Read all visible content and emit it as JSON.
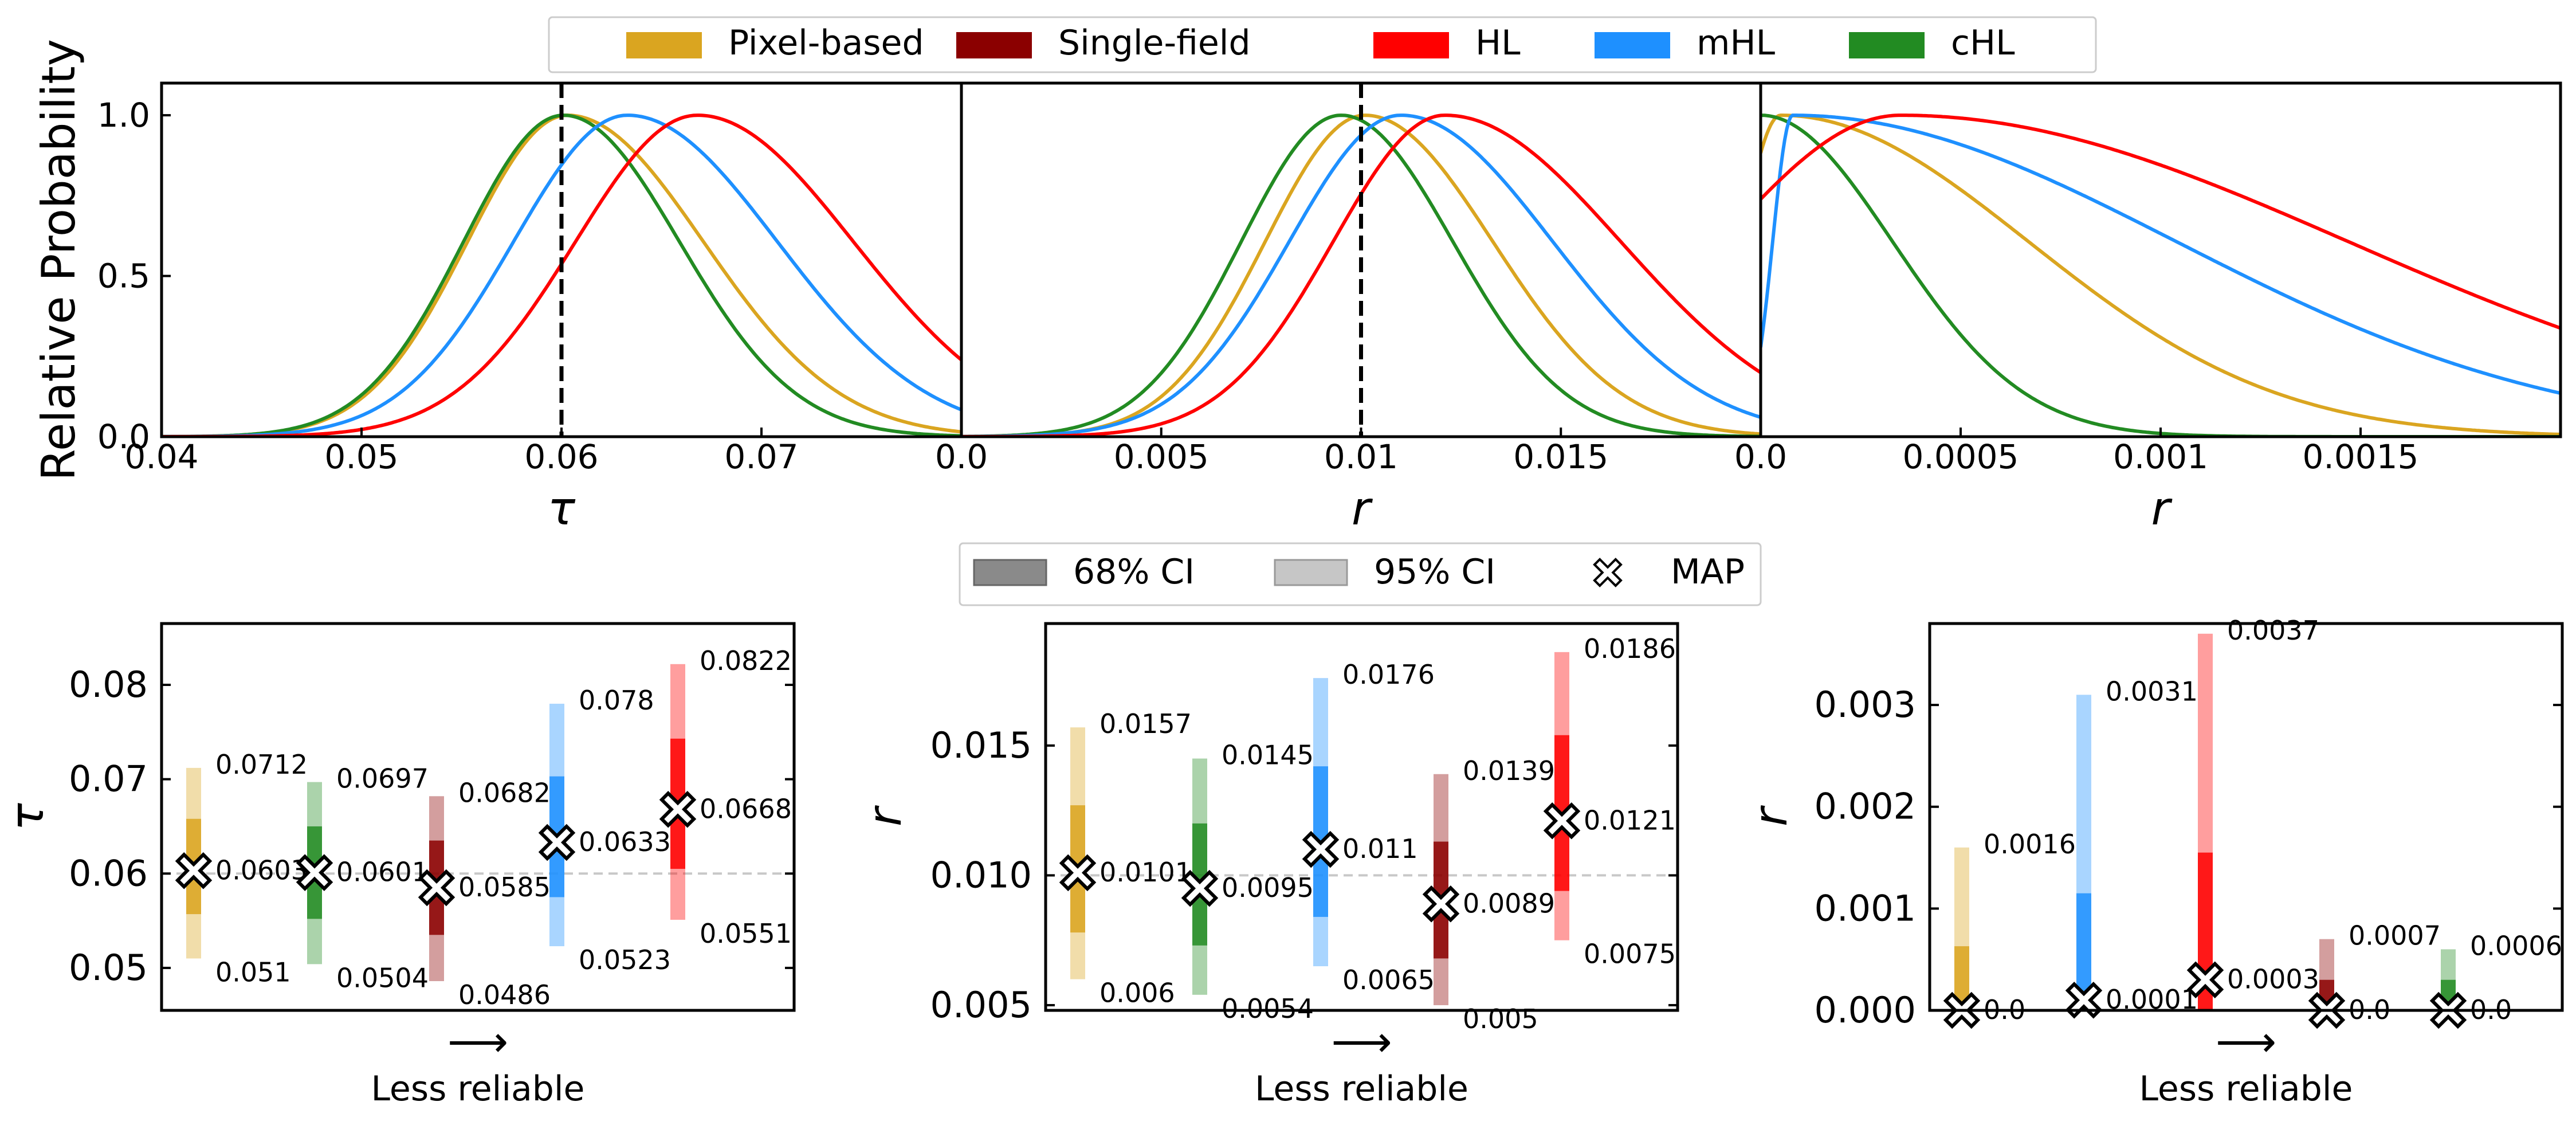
{
  "colors": {
    "pixel": "#DAA520",
    "single": "#8B0000",
    "hl": "#FF0000",
    "mhl": "#1E90FF",
    "chl": "#228B22"
  },
  "top_legend": {
    "items": [
      {
        "key": "pixel",
        "label": "Pixel-based"
      },
      {
        "key": "single",
        "label": "Single-field"
      },
      {
        "key": "hl",
        "label": "HL"
      },
      {
        "key": "mhl",
        "label": "mHL"
      },
      {
        "key": "chl",
        "label": "cHL"
      }
    ]
  },
  "ci_legend": {
    "items": [
      {
        "key": "ci68",
        "label": "68% CI"
      },
      {
        "key": "ci95",
        "label": "95% CI"
      },
      {
        "key": "map",
        "label": "MAP"
      }
    ]
  },
  "chart_data": [
    {
      "type": "line",
      "panel": "top-1",
      "ylabel": "Relative Probability",
      "xlabel": "τ",
      "xlim": [
        0.04,
        0.08
      ],
      "ylim": [
        0,
        1.1
      ],
      "xticks": [
        0.04,
        0.05,
        0.06,
        0.07
      ],
      "xtick_labels": [
        "0.04",
        "0.05",
        "0.06",
        "0.07"
      ],
      "yticks": [
        0,
        0.5,
        1.0
      ],
      "ytick_labels": [
        "0.0",
        "0.5",
        "1.0"
      ],
      "truth_line": 0.06,
      "series": [
        {
          "key": "pixel",
          "shape": "gauss",
          "mode": 0.0603,
          "sl": 0.005,
          "sr": 0.0068
        },
        {
          "key": "chl",
          "shape": "gauss",
          "mode": 0.0601,
          "sl": 0.005,
          "sr": 0.0058
        },
        {
          "key": "mhl",
          "shape": "gauss",
          "mode": 0.0633,
          "sl": 0.0057,
          "sr": 0.0075
        },
        {
          "key": "hl",
          "shape": "gauss",
          "mode": 0.0668,
          "sl": 0.0061,
          "sr": 0.0078
        }
      ]
    },
    {
      "type": "line",
      "panel": "top-2",
      "xlabel": "r",
      "xlim": [
        0,
        0.02
      ],
      "ylim": [
        0,
        1.1
      ],
      "xticks": [
        0,
        0.005,
        0.01,
        0.015
      ],
      "xtick_labels": [
        "0.0",
        "0.005",
        "0.01",
        "0.015"
      ],
      "truth_line": 0.01,
      "series": [
        {
          "key": "pixel",
          "shape": "gauss",
          "mode": 0.0101,
          "sl": 0.0025,
          "sr": 0.0032
        },
        {
          "key": "chl",
          "shape": "gauss",
          "mode": 0.0095,
          "sl": 0.0025,
          "sr": 0.0028
        },
        {
          "key": "mhl",
          "shape": "gauss",
          "mode": 0.011,
          "sl": 0.0028,
          "sr": 0.0038
        },
        {
          "key": "hl",
          "shape": "gauss",
          "mode": 0.0121,
          "sl": 0.0028,
          "sr": 0.0044
        }
      ]
    },
    {
      "type": "line",
      "panel": "top-3",
      "xlabel": "r",
      "xlim": [
        0,
        0.002
      ],
      "ylim": [
        0,
        1.1
      ],
      "xticks": [
        0,
        0.0005,
        0.001,
        0.0015
      ],
      "xtick_labels": [
        "0.0",
        "0.0005",
        "0.001",
        "0.0015"
      ],
      "series": [
        {
          "key": "pixel",
          "shape": "halfnorm",
          "mode": 5e-05,
          "sl": 0.0001,
          "sr": 0.00062
        },
        {
          "key": "chl",
          "shape": "halfnorm",
          "mode": 0.0,
          "sl": 0.0001,
          "sr": 0.00033
        },
        {
          "key": "mhl",
          "shape": "gauss",
          "mode": 8e-05,
          "sl": 5e-05,
          "sr": 0.00096
        },
        {
          "key": "hl",
          "shape": "gauss",
          "mode": 0.00035,
          "sl": 0.00045,
          "sr": 0.00112
        }
      ]
    },
    {
      "type": "interval",
      "panel": "bottom-1",
      "ylabel": "τ",
      "xlabel": "Less reliable",
      "arrow": "⟶",
      "ylim": [
        0.0455,
        0.0865
      ],
      "yticks": [
        0.05,
        0.06,
        0.07,
        0.08
      ],
      "ytick_labels": [
        "0.05",
        "0.06",
        "0.07",
        "0.08"
      ],
      "truth_line": 0.06,
      "points": [
        {
          "key": "pixel",
          "map": 0.0603,
          "ci68": [
            0.0557,
            0.0658
          ],
          "ci95": [
            0.051,
            0.0712
          ],
          "map_label": "0.0603",
          "lo_label": "0.051",
          "hi_label": "0.0712"
        },
        {
          "key": "chl",
          "map": 0.0601,
          "ci68": [
            0.0552,
            0.065
          ],
          "ci95": [
            0.0504,
            0.0697
          ],
          "map_label": "0.0601",
          "lo_label": "0.0504",
          "hi_label": "0.0697"
        },
        {
          "key": "single",
          "map": 0.0585,
          "ci68": [
            0.0535,
            0.0635
          ],
          "ci95": [
            0.0486,
            0.0682
          ],
          "map_label": "0.0585",
          "lo_label": "0.0486",
          "hi_label": "0.0682"
        },
        {
          "key": "mhl",
          "map": 0.0633,
          "ci68": [
            0.0575,
            0.0703
          ],
          "ci95": [
            0.0523,
            0.078
          ],
          "map_label": "0.0633",
          "lo_label": "0.0523",
          "hi_label": "0.078"
        },
        {
          "key": "hl",
          "map": 0.0668,
          "ci68": [
            0.0605,
            0.0743
          ],
          "ci95": [
            0.0551,
            0.0822
          ],
          "map_label": "0.0668",
          "lo_label": "0.0551",
          "hi_label": "0.0822"
        }
      ]
    },
    {
      "type": "interval",
      "panel": "bottom-2",
      "ylabel": "r",
      "xlabel": "Less reliable",
      "arrow": "⟶",
      "ylim": [
        0.0048,
        0.0197
      ],
      "yticks": [
        0.005,
        0.01,
        0.015
      ],
      "ytick_labels": [
        "0.005",
        "0.010",
        "0.015"
      ],
      "truth_line": 0.01,
      "points": [
        {
          "key": "pixel",
          "map": 0.0101,
          "ci68": [
            0.0078,
            0.0127
          ],
          "ci95": [
            0.006,
            0.0157
          ],
          "map_label": "0.0101",
          "lo_label": "0.006",
          "hi_label": "0.0157"
        },
        {
          "key": "chl",
          "map": 0.0095,
          "ci68": [
            0.0073,
            0.012
          ],
          "ci95": [
            0.0054,
            0.0145
          ],
          "map_label": "0.0095",
          "lo_label": "0.0054",
          "hi_label": "0.0145"
        },
        {
          "key": "mhl",
          "map": 0.011,
          "ci68": [
            0.0084,
            0.0142
          ],
          "ci95": [
            0.0065,
            0.0176
          ],
          "map_label": "0.011",
          "lo_label": "0.0065",
          "hi_label": "0.0176"
        },
        {
          "key": "single",
          "map": 0.0089,
          "ci68": [
            0.0068,
            0.0113
          ],
          "ci95": [
            0.005,
            0.0139
          ],
          "map_label": "0.0089",
          "lo_label": "0.005",
          "hi_label": "0.0139"
        },
        {
          "key": "hl",
          "map": 0.0121,
          "ci68": [
            0.0094,
            0.0154
          ],
          "ci95": [
            0.0075,
            0.0186
          ],
          "map_label": "0.0121",
          "lo_label": "0.0075",
          "hi_label": "0.0186"
        }
      ]
    },
    {
      "type": "interval",
      "panel": "bottom-3",
      "ylabel": "r",
      "xlabel": "Less reliable",
      "arrow": "⟶",
      "ylim": [
        0,
        0.0038
      ],
      "yticks": [
        0,
        0.001,
        0.002,
        0.003
      ],
      "ytick_labels": [
        "0.000",
        "0.001",
        "0.002",
        "0.003"
      ],
      "points": [
        {
          "key": "pixel",
          "map": 0.0,
          "ci68": [
            0,
            0.00063
          ],
          "ci95": [
            0,
            0.0016
          ],
          "map_label": "0.0",
          "hi_label": "0.0016"
        },
        {
          "key": "mhl",
          "map": 0.0001,
          "ci68": [
            0,
            0.00115
          ],
          "ci95": [
            0,
            0.0031
          ],
          "map_label": "0.0001",
          "hi_label": "0.0031"
        },
        {
          "key": "hl",
          "map": 0.0003,
          "ci68": [
            0,
            0.00155
          ],
          "ci95": [
            0,
            0.0037
          ],
          "map_label": "0.0003",
          "hi_label": "0.0037"
        },
        {
          "key": "single",
          "map": 0.0,
          "ci68": [
            0,
            0.0003
          ],
          "ci95": [
            0,
            0.0007
          ],
          "map_label": "0.0",
          "hi_label": "0.0007"
        },
        {
          "key": "chl",
          "map": 0.0,
          "ci68": [
            0,
            0.0003
          ],
          "ci95": [
            0,
            0.0006
          ],
          "map_label": "0.0",
          "hi_label": "0.0006"
        }
      ]
    }
  ]
}
